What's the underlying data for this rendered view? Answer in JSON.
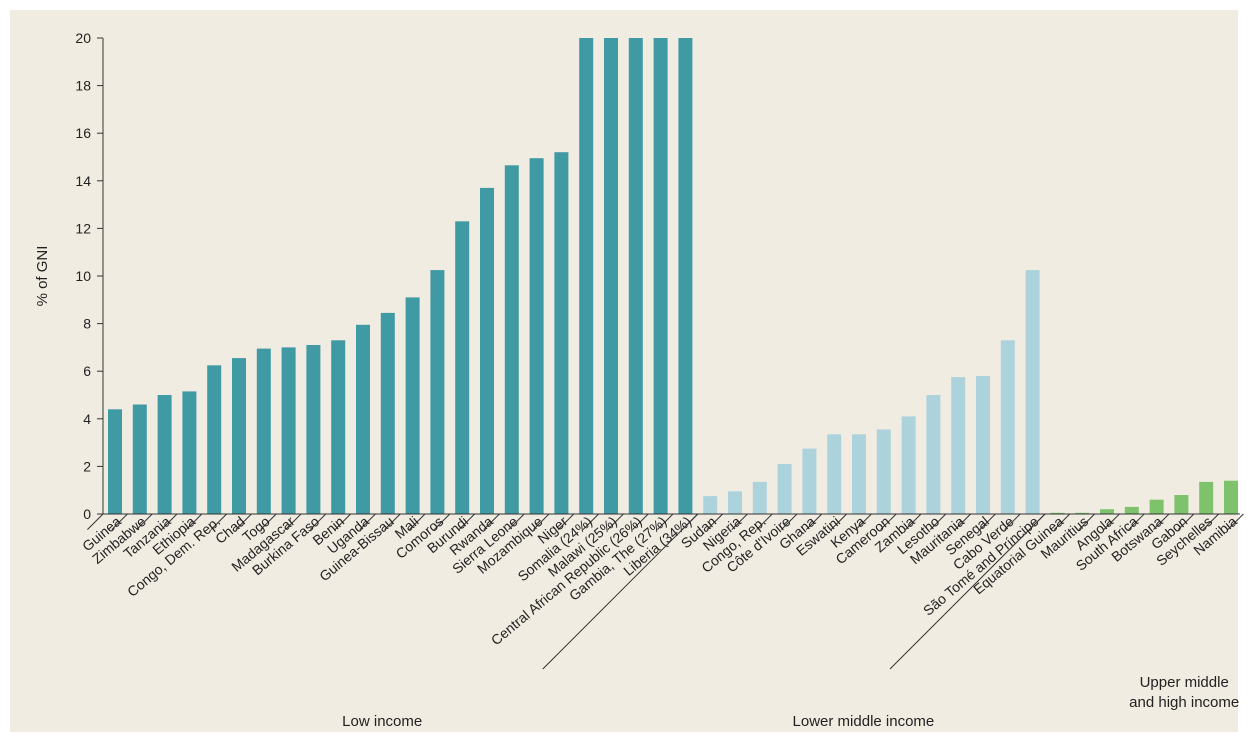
{
  "colors": {
    "background": "#f1ece1",
    "low_income": "#3f9aa3",
    "lower_middle_income": "#acd3dc",
    "upper_middle_high_income": "#7ec26b",
    "axis": "#333333",
    "text": "#222222"
  },
  "chart_data": {
    "type": "bar",
    "ylabel": "% of GNI",
    "ylim": [
      0,
      20
    ],
    "yticks": [
      "0",
      "2",
      "4",
      "6",
      "8",
      "10",
      "12",
      "14",
      "16",
      "18",
      "20"
    ],
    "grid": false,
    "categories": [
      "Guinea",
      "Zimbabwe",
      "Tanzania",
      "Ethiopia",
      "Congo, Dem. Rep.",
      "Chad",
      "Togo",
      "Madagascar",
      "Burkina Faso",
      "Benin",
      "Uganda",
      "Guinea-Bissau",
      "Mali",
      "Comoros",
      "Burundi",
      "Rwanda",
      "Sierra Leone",
      "Mozambique",
      "Niger",
      "Somalia (24%)",
      "Malawi (25%)",
      "Central African Republic (26%)",
      "Gambia, The (27%)",
      "Liberia (34%)",
      "Sudan",
      "Nigeria",
      "Congo, Rep.",
      "Côte d'Ivoire",
      "Ghana",
      "Eswatini",
      "Kenya",
      "Cameroon",
      "Zambia",
      "Lesotho",
      "Mauritania",
      "Senegal",
      "Cabo Verde",
      "São Tomé and Príncipe",
      "Equatorial Guinea",
      "Mauritius",
      "Angola",
      "South Africa",
      "Botswana",
      "Gabon",
      "Seychelles",
      "Namibia"
    ],
    "values": [
      4.4,
      4.6,
      5.0,
      5.15,
      6.25,
      6.55,
      6.95,
      7.0,
      7.1,
      7.3,
      7.95,
      8.45,
      9.1,
      10.25,
      12.3,
      13.7,
      14.65,
      14.95,
      15.2,
      20,
      20,
      20,
      20,
      20,
      0.75,
      0.95,
      1.35,
      2.1,
      2.75,
      3.35,
      3.35,
      3.55,
      4.1,
      5.0,
      5.75,
      5.8,
      7.3,
      10.25,
      0.05,
      0.05,
      0.2,
      0.3,
      0.6,
      0.8,
      1.35,
      1.4
    ],
    "groups": [
      {
        "label": "Low income",
        "start": 0,
        "end": 23,
        "color_key": "low_income"
      },
      {
        "label": "Lower middle income",
        "start": 24,
        "end": 37,
        "color_key": "lower_middle_income"
      },
      {
        "label": "Upper middle\nand high income",
        "start": 38,
        "end": 45,
        "color_key": "upper_middle_high_income"
      }
    ]
  }
}
